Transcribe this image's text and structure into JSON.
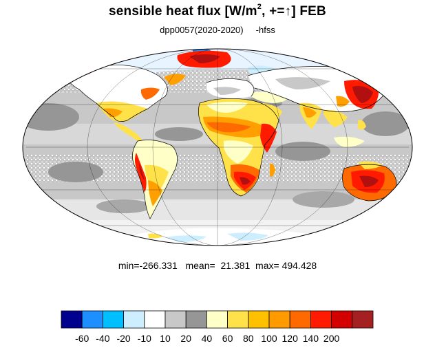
{
  "title": {
    "main_prefix": "sensible heat flux [W/m",
    "superscript": "2",
    "main_suffix": ", +=↑]  FEB"
  },
  "subtitle": "dpp0057(2020-2020)     -hfss",
  "stats": "min=-266.331   mean=  21.381  max= 494.428",
  "colorbar": {
    "colors": [
      "#00008f",
      "#1e8fff",
      "#00bfff",
      "#cceeff",
      "#ffffff",
      "#c8c8c8",
      "#969696",
      "#ffffc8",
      "#ffe14a",
      "#ffc000",
      "#ff9a00",
      "#ff6a00",
      "#ff1a00",
      "#d20000",
      "#a52020"
    ],
    "labels": [
      "-60",
      "-40",
      "-20",
      "-10",
      "10",
      "20",
      "40",
      "60",
      "80",
      "100",
      "120",
      "140",
      "200"
    ]
  },
  "map_colors": {
    "ocean": "#bcbcbc",
    "ocean_dark": "#969696",
    "land_light": "#ffffc8",
    "land_mid": "#ffe14a",
    "land_orange": "#ffa000",
    "land_red": "#ff3a00",
    "land_darkred": "#b01010",
    "cold_blue": "#cceeff",
    "mid_blue": "#1e8fff"
  }
}
